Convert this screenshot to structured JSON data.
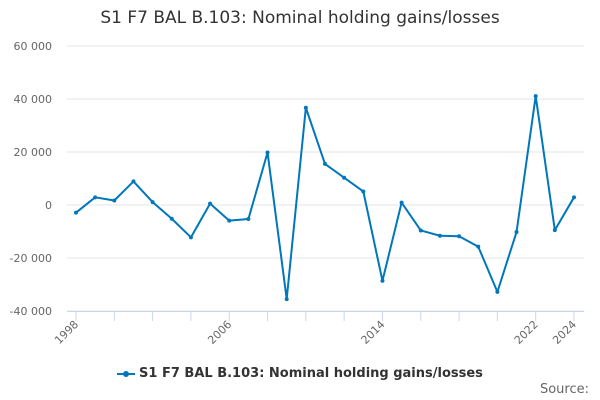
{
  "chart_data": {
    "type": "line",
    "title": "S1 F7 BAL B.103: Nominal holding gains/losses",
    "x": [
      1998,
      1999,
      2000,
      2001,
      2002,
      2003,
      2004,
      2005,
      2006,
      2007,
      2008,
      2009,
      2010,
      2011,
      2012,
      2013,
      2014,
      2015,
      2016,
      2017,
      2018,
      2019,
      2020,
      2021,
      2022,
      2023,
      2024
    ],
    "series": [
      {
        "name": "S1 F7 BAL B.103: Nominal holding gains/losses",
        "color": "#0077bb",
        "values": [
          -2900,
          2900,
          1700,
          8900,
          1100,
          -5200,
          -12200,
          500,
          -5900,
          -5300,
          19800,
          -35500,
          36700,
          15500,
          10300,
          5100,
          -28600,
          900,
          -9600,
          -11600,
          -11800,
          -15700,
          -32800,
          -10200,
          41100,
          -9500,
          2900
        ]
      }
    ],
    "ylim": [
      -40000,
      60000
    ],
    "yticks": [
      "-40 000",
      "-20 000",
      "0",
      "20 000",
      "40 000",
      "60 000"
    ],
    "ytick_values": [
      -40000,
      -20000,
      0,
      20000,
      40000,
      60000
    ],
    "xtick_labels": [
      "1998",
      "2006",
      "2014",
      "2022",
      "2024"
    ],
    "grid": true,
    "legend": "bottom",
    "source_label": "Source:"
  }
}
